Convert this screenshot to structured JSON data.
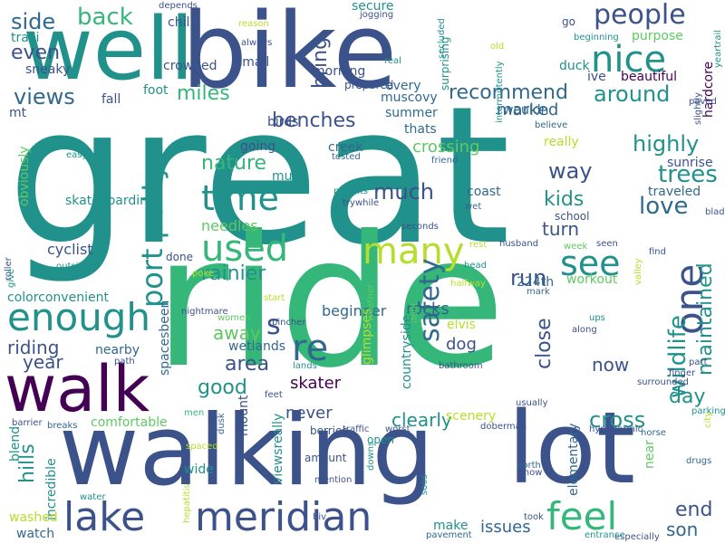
{
  "colors": {
    "dark_purple": "#440154",
    "indigo": "#3b528b",
    "slate_blue": "#31688e",
    "teal": "#21918c",
    "green": "#35b779",
    "light_green": "#5ec962",
    "yellow_green": "#b5de2b",
    "yellow": "#fde725"
  },
  "words": [
    {
      "text": "great"
    },
    {
      "text": "ride"
    },
    {
      "text": "bike"
    },
    {
      "text": "well"
    },
    {
      "text": "walking"
    },
    {
      "text": "lot"
    },
    {
      "text": "walk"
    },
    {
      "text": "lake"
    },
    {
      "text": "meridian"
    },
    {
      "text": "enough"
    },
    {
      "text": "many"
    },
    {
      "text": "used"
    },
    {
      "text": "time"
    },
    {
      "text": "see"
    },
    {
      "text": "nice"
    },
    {
      "text": "people"
    },
    {
      "text": "one"
    },
    {
      "text": "feel"
    },
    {
      "text": "re"
    },
    {
      "text": "s"
    },
    {
      "text": "port potty"
    },
    {
      "text": "side"
    },
    {
      "text": "back"
    },
    {
      "text": "even"
    },
    {
      "text": "views"
    },
    {
      "text": "miles"
    },
    {
      "text": "benches"
    },
    {
      "text": "nature"
    },
    {
      "text": "rainier"
    },
    {
      "text": "riding"
    },
    {
      "text": "area"
    },
    {
      "text": "good"
    },
    {
      "text": "away"
    },
    {
      "text": "safety"
    },
    {
      "text": "run"
    },
    {
      "text": "close"
    },
    {
      "text": "wildlife"
    },
    {
      "text": "maintained"
    },
    {
      "text": "end"
    },
    {
      "text": "day"
    },
    {
      "text": "cross"
    },
    {
      "text": "love"
    },
    {
      "text": "trees"
    },
    {
      "text": "highly"
    },
    {
      "text": "around"
    },
    {
      "text": "recommend"
    },
    {
      "text": "way"
    },
    {
      "text": "much"
    },
    {
      "text": "kids"
    },
    {
      "text": "turn"
    },
    {
      "text": "now"
    },
    {
      "text": "dog"
    },
    {
      "text": "rocks"
    },
    {
      "text": "crossing"
    },
    {
      "text": "marked"
    },
    {
      "text": "bring"
    },
    {
      "text": "hills"
    },
    {
      "text": "year"
    },
    {
      "text": "clearly"
    },
    {
      "text": "never"
    },
    {
      "text": "son"
    },
    {
      "text": "issues"
    },
    {
      "text": "skater"
    },
    {
      "text": "beginner"
    },
    {
      "text": "cyclist"
    },
    {
      "text": "needles"
    },
    {
      "text": "skateboarding"
    },
    {
      "text": "obviously"
    },
    {
      "text": "nearby"
    },
    {
      "text": "wetlands"
    },
    {
      "text": "countryside"
    },
    {
      "text": "workout"
    },
    {
      "text": "wouldn"
    },
    {
      "text": "beautiful"
    },
    {
      "text": "hardcore"
    },
    {
      "text": "comfortable"
    },
    {
      "text": "scenery"
    },
    {
      "text": "every"
    },
    {
      "text": "crowded"
    },
    {
      "text": "small"
    },
    {
      "text": "sneaky"
    },
    {
      "text": "traili"
    },
    {
      "text": "fall"
    },
    {
      "text": "chill"
    },
    {
      "text": "foot"
    },
    {
      "text": "birds"
    },
    {
      "text": "going"
    },
    {
      "text": "multi"
    },
    {
      "text": "creek"
    },
    {
      "text": "thats"
    },
    {
      "text": "really"
    },
    {
      "text": "sunrise"
    },
    {
      "text": "traveled"
    },
    {
      "text": "school"
    },
    {
      "text": "coast"
    },
    {
      "text": "elvis"
    },
    {
      "text": "224th"
    },
    {
      "text": "summer"
    },
    {
      "text": "muscovy"
    },
    {
      "text": "duck"
    },
    {
      "text": "ive"
    },
    {
      "text": "purpose"
    },
    {
      "text": "go"
    },
    {
      "text": "secure"
    },
    {
      "text": "surprising"
    },
    {
      "text": "morning"
    },
    {
      "text": "prepared"
    },
    {
      "text": "mt"
    },
    {
      "text": "colorconvenient"
    },
    {
      "text": "spacesbeen"
    },
    {
      "text": "done"
    },
    {
      "text": "amount"
    },
    {
      "text": "open"
    },
    {
      "text": "wide"
    },
    {
      "text": "blend"
    },
    {
      "text": "incredible"
    },
    {
      "text": "washed"
    },
    {
      "text": "watch"
    },
    {
      "text": "make"
    },
    {
      "text": "mount"
    },
    {
      "text": "viewsreally"
    },
    {
      "text": "berries"
    },
    {
      "text": "elementary"
    },
    {
      "text": "near"
    },
    {
      "text": "glimpses"
    },
    {
      "text": "easy"
    },
    {
      "text": "depends"
    },
    {
      "text": "reason"
    },
    {
      "text": "always"
    },
    {
      "text": "jogging"
    },
    {
      "text": "secluded"
    },
    {
      "text": "old"
    },
    {
      "text": "real"
    },
    {
      "text": "intermittently"
    },
    {
      "text": "believe"
    },
    {
      "text": "slightly"
    },
    {
      "text": "paved"
    },
    {
      "text": "yeartrail"
    },
    {
      "text": "beginning"
    },
    {
      "text": "tested"
    },
    {
      "text": "friend"
    },
    {
      "text": "parents"
    },
    {
      "text": "trywhile"
    },
    {
      "text": "wet"
    },
    {
      "text": "seconds"
    },
    {
      "text": "rest"
    },
    {
      "text": "husband"
    },
    {
      "text": "week"
    },
    {
      "text": "seen"
    },
    {
      "text": "find"
    },
    {
      "text": "blading"
    },
    {
      "text": "roller"
    },
    {
      "text": "outside"
    },
    {
      "text": "give"
    },
    {
      "text": "poke"
    },
    {
      "text": "nightmare"
    },
    {
      "text": "start"
    },
    {
      "text": "head"
    },
    {
      "text": "halfway"
    },
    {
      "text": "mark"
    },
    {
      "text": "valley"
    },
    {
      "text": "ups"
    },
    {
      "text": "along"
    },
    {
      "text": "women"
    },
    {
      "text": "pincher"
    },
    {
      "text": "weather"
    },
    {
      "text": "dont"
    },
    {
      "text": "part"
    },
    {
      "text": "finger"
    },
    {
      "text": "surrounded"
    },
    {
      "text": "usually"
    },
    {
      "text": "parking"
    },
    {
      "text": "city"
    },
    {
      "text": "hypodermic"
    },
    {
      "text": "horse"
    },
    {
      "text": "drugs"
    },
    {
      "text": "north"
    },
    {
      "text": "know"
    },
    {
      "text": "took"
    },
    {
      "text": "especially"
    },
    {
      "text": "entrance"
    },
    {
      "text": "pavement"
    },
    {
      "text": "water"
    },
    {
      "text": "hepatitis"
    },
    {
      "text": "hiv"
    },
    {
      "text": "mention"
    },
    {
      "text": "downs"
    },
    {
      "text": "soos"
    },
    {
      "text": "doberman"
    },
    {
      "text": "traffic"
    },
    {
      "text": "worst"
    },
    {
      "text": "dusk"
    },
    {
      "text": "spaced"
    },
    {
      "text": "men"
    },
    {
      "text": "breaks"
    },
    {
      "text": "barrier"
    },
    {
      "text": "path"
    },
    {
      "text": "lands"
    },
    {
      "text": "feet"
    },
    {
      "text": "bathroom"
    }
  ]
}
